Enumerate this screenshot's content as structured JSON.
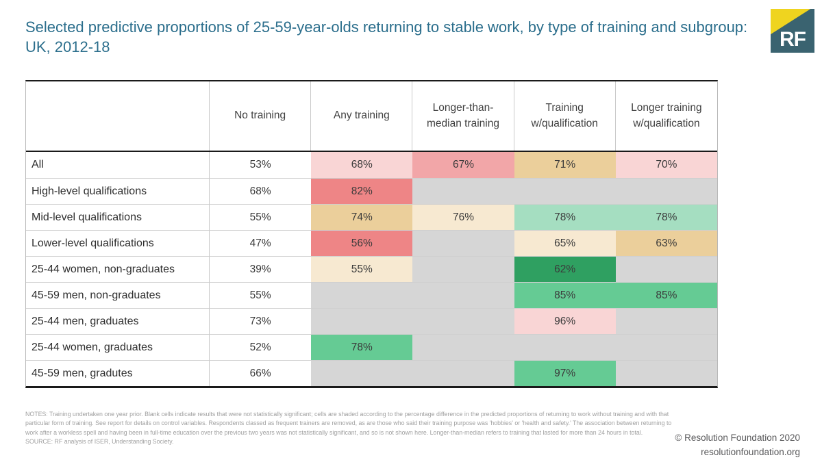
{
  "title": {
    "text": "Selected predictive proportions of 25-59-year-olds returning to stable work, by type of training and subgroup: UK, 2012-18"
  },
  "logo": {
    "text": "RF"
  },
  "colors": {
    "accent_title": "#2b6e8c",
    "logo_teal": "#3a6370",
    "logo_yellow": "#efd41f",
    "cells": {
      "none": "transparent",
      "blank": "#d6d6d6",
      "pink_light": "#f9d5d5",
      "pink_med": "#f2a6a8",
      "red": "#ee8586",
      "tan": "#ebcf9b",
      "cream": "#f7e9d1",
      "green_light": "#a5dec1",
      "green": "#65cb94",
      "green_dark": "#2fa061"
    }
  },
  "table": {
    "header": [
      "",
      "No training",
      "Any training",
      "Longer-than-median training",
      "Training w/qualification",
      "Longer training w/qualification"
    ],
    "rows": [
      {
        "label": "All",
        "cells": [
          {
            "text": "53%",
            "color": "none"
          },
          {
            "text": "68%",
            "color": "pink_light"
          },
          {
            "text": "67%",
            "color": "pink_med"
          },
          {
            "text": "71%",
            "color": "tan"
          },
          {
            "text": "70%",
            "color": "pink_light"
          }
        ]
      },
      {
        "label": "High-level qualifications",
        "cells": [
          {
            "text": "68%",
            "color": "none"
          },
          {
            "text": "82%",
            "color": "red"
          },
          {
            "text": "",
            "color": "blank"
          },
          {
            "text": "",
            "color": "blank"
          },
          {
            "text": "",
            "color": "blank"
          }
        ]
      },
      {
        "label": "Mid-level qualifications",
        "cells": [
          {
            "text": "55%",
            "color": "none"
          },
          {
            "text": "74%",
            "color": "tan"
          },
          {
            "text": "76%",
            "color": "cream"
          },
          {
            "text": "78%",
            "color": "green_light"
          },
          {
            "text": "78%",
            "color": "green_light"
          }
        ]
      },
      {
        "label": "Lower-level qualifications",
        "cells": [
          {
            "text": "47%",
            "color": "none"
          },
          {
            "text": "56%",
            "color": "red"
          },
          {
            "text": "",
            "color": "blank"
          },
          {
            "text": "65%",
            "color": "cream"
          },
          {
            "text": "63%",
            "color": "tan"
          }
        ]
      },
      {
        "label": "25-44 women, non-graduates",
        "cells": [
          {
            "text": "39%",
            "color": "none"
          },
          {
            "text": "55%",
            "color": "cream"
          },
          {
            "text": "",
            "color": "blank"
          },
          {
            "text": "62%",
            "color": "green_dark"
          },
          {
            "text": "",
            "color": "blank"
          }
        ]
      },
      {
        "label": "45-59 men, non-graduates",
        "cells": [
          {
            "text": "55%",
            "color": "none"
          },
          {
            "text": "",
            "color": "blank"
          },
          {
            "text": "",
            "color": "blank"
          },
          {
            "text": "85%",
            "color": "green"
          },
          {
            "text": "85%",
            "color": "green"
          }
        ]
      },
      {
        "label": "25-44 men, graduates",
        "cells": [
          {
            "text": "73%",
            "color": "none"
          },
          {
            "text": "",
            "color": "blank"
          },
          {
            "text": "",
            "color": "blank"
          },
          {
            "text": "96%",
            "color": "pink_light"
          },
          {
            "text": "",
            "color": "blank"
          }
        ]
      },
      {
        "label": "25-44 women, graduates",
        "cells": [
          {
            "text": "52%",
            "color": "none"
          },
          {
            "text": "78%",
            "color": "green"
          },
          {
            "text": "",
            "color": "blank"
          },
          {
            "text": "",
            "color": "blank"
          },
          {
            "text": "",
            "color": "blank"
          }
        ]
      },
      {
        "label": "45-59 men, gradutes",
        "cells": [
          {
            "text": "66%",
            "color": "none"
          },
          {
            "text": "",
            "color": "blank"
          },
          {
            "text": "",
            "color": "blank"
          },
          {
            "text": "97%",
            "color": "green"
          },
          {
            "text": "",
            "color": "blank"
          }
        ]
      }
    ]
  },
  "chart_data": {
    "type": "table",
    "title": "Selected predictive proportions of 25-59-year-olds returning to stable work, by type of training and subgroup: UK, 2012-18",
    "columns": [
      "No training",
      "Any training",
      "Longer-than-median training",
      "Training w/qualification",
      "Longer training w/qualification"
    ],
    "rows": [
      "All",
      "High-level qualifications",
      "Mid-level qualifications",
      "Lower-level qualifications",
      "25-44 women, non-graduates",
      "45-59 men, non-graduates",
      "25-44 men, graduates",
      "25-44 women, graduates",
      "45-59 men, gradutes"
    ],
    "values_pct": [
      [
        53,
        68,
        67,
        71,
        70
      ],
      [
        68,
        82,
        null,
        null,
        null
      ],
      [
        55,
        74,
        76,
        78,
        78
      ],
      [
        47,
        56,
        null,
        65,
        63
      ],
      [
        39,
        55,
        null,
        62,
        null
      ],
      [
        55,
        null,
        null,
        85,
        85
      ],
      [
        73,
        null,
        null,
        96,
        null
      ],
      [
        52,
        78,
        null,
        null,
        null
      ],
      [
        66,
        null,
        null,
        97,
        null
      ]
    ],
    "notes_semantics": "Blank (null) cells = not statistically significant; cell shading encodes percentage difference vs no training (reds = small/negative, creams/tans = moderate, greens = large)"
  },
  "footer": {
    "notes": "NOTES: Training undertaken one year prior. Blank cells indicate results that were not statistically significant; cells are shaded according to the percentage difference in the predicted proportions of returning to work without training and with that particular form of training.  See report for details on control variables. Respondents classed as frequent trainers are removed, as are those who said their training purpose was 'hobbies' or 'health and safety.' The association between returning to work after a workless spell and having been in full-time education over the previous two years was not statistically significant, and so is not shown here.  Longer-than-median refers to training that lasted for more than 24 hours in total.",
    "source": "SOURCE: RF analysis of ISER, Understanding Society.",
    "copyright": "© Resolution Foundation 2020",
    "website": "resolutionfoundation.org"
  }
}
